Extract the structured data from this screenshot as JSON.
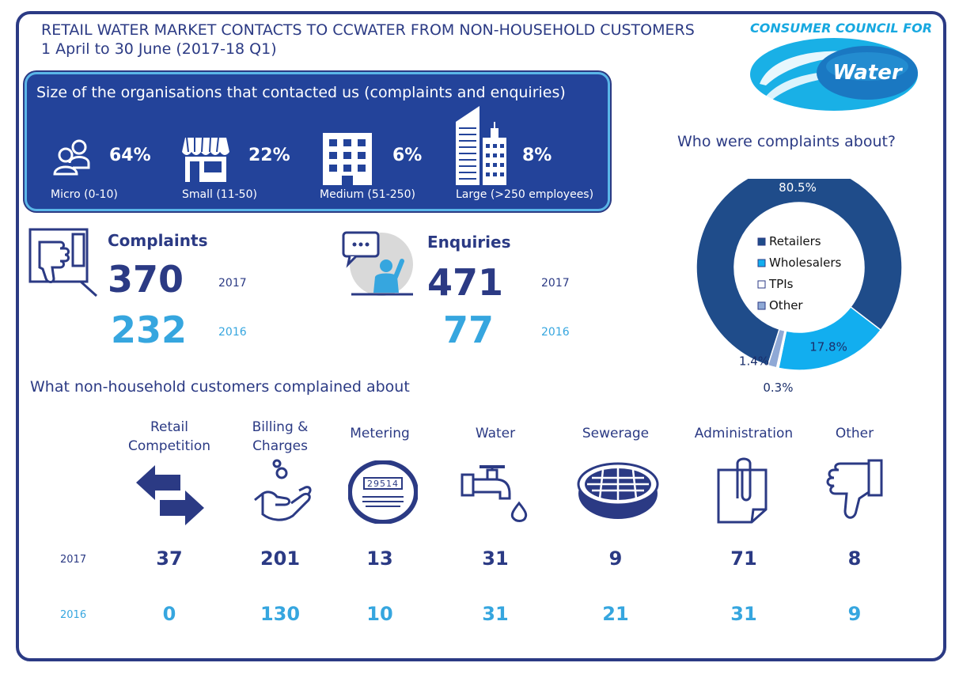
{
  "header": {
    "title_line1": "RETAIL WATER MARKET CONTACTS TO CCWATER FROM NON-HOUSEHOLD CUSTOMERS",
    "title_line2": "1 April to 30 June (2017-18 Q1)"
  },
  "brand": {
    "top_text": "CONSUMER COUNCIL FOR",
    "logo_word": "Water"
  },
  "size_panel": {
    "heading": "Size of the organisations that contacted us (complaints and enquiries)",
    "items": [
      {
        "label": "Micro (0-10)",
        "percent": "64%",
        "icon": "people-icon"
      },
      {
        "label": "Small (11-50)",
        "percent": "22%",
        "icon": "shop-icon"
      },
      {
        "label": "Medium (51-250)",
        "percent": "6%",
        "icon": "building-icon"
      },
      {
        "label": "Large (>250 employees)",
        "percent": "8%",
        "icon": "skyscraper-icon"
      }
    ]
  },
  "complaints": {
    "label": "Complaints",
    "value_2017": "370",
    "value_2016": "232",
    "year_2017": "2017",
    "year_2016": "2016"
  },
  "enquiries": {
    "label": "Enquiries",
    "value_2017": "471",
    "value_2016": "77",
    "year_2017": "2017",
    "year_2016": "2016"
  },
  "complained_about": {
    "heading": "What non-household customers complained about",
    "year_2017": "2017",
    "year_2016": "2016"
  },
  "colors": {
    "navy": "#2b3a84",
    "panel": "#23439a",
    "light_blue": "#36a6df",
    "retailers": "#1f4c8a",
    "wholesalers": "#12aeef",
    "tpis": "#ffffff",
    "other": "#8fa9d6"
  },
  "chart_data": [
    {
      "type": "pie",
      "title": "Who were complaints about?",
      "labels": [
        "Retailers",
        "Wholesalers",
        "TPIs",
        "Other"
      ],
      "values": [
        80.5,
        17.8,
        0.3,
        1.4
      ],
      "value_labels": [
        "80.5%",
        "17.8%",
        "0.3%",
        "1.4%"
      ],
      "colors": [
        "#1f4c8a",
        "#12aeef",
        "#ffffff",
        "#8fa9d6"
      ],
      "legend": "center"
    },
    {
      "type": "table",
      "categories": [
        "Retail Competition",
        "Billing & Charges",
        "Metering",
        "Water",
        "Sewerage",
        "Administration",
        "Other"
      ],
      "series": [
        {
          "name": "2017",
          "values": [
            37,
            201,
            13,
            31,
            9,
            71,
            8
          ]
        },
        {
          "name": "2016",
          "values": [
            0,
            130,
            10,
            31,
            21,
            31,
            9
          ]
        }
      ]
    }
  ]
}
